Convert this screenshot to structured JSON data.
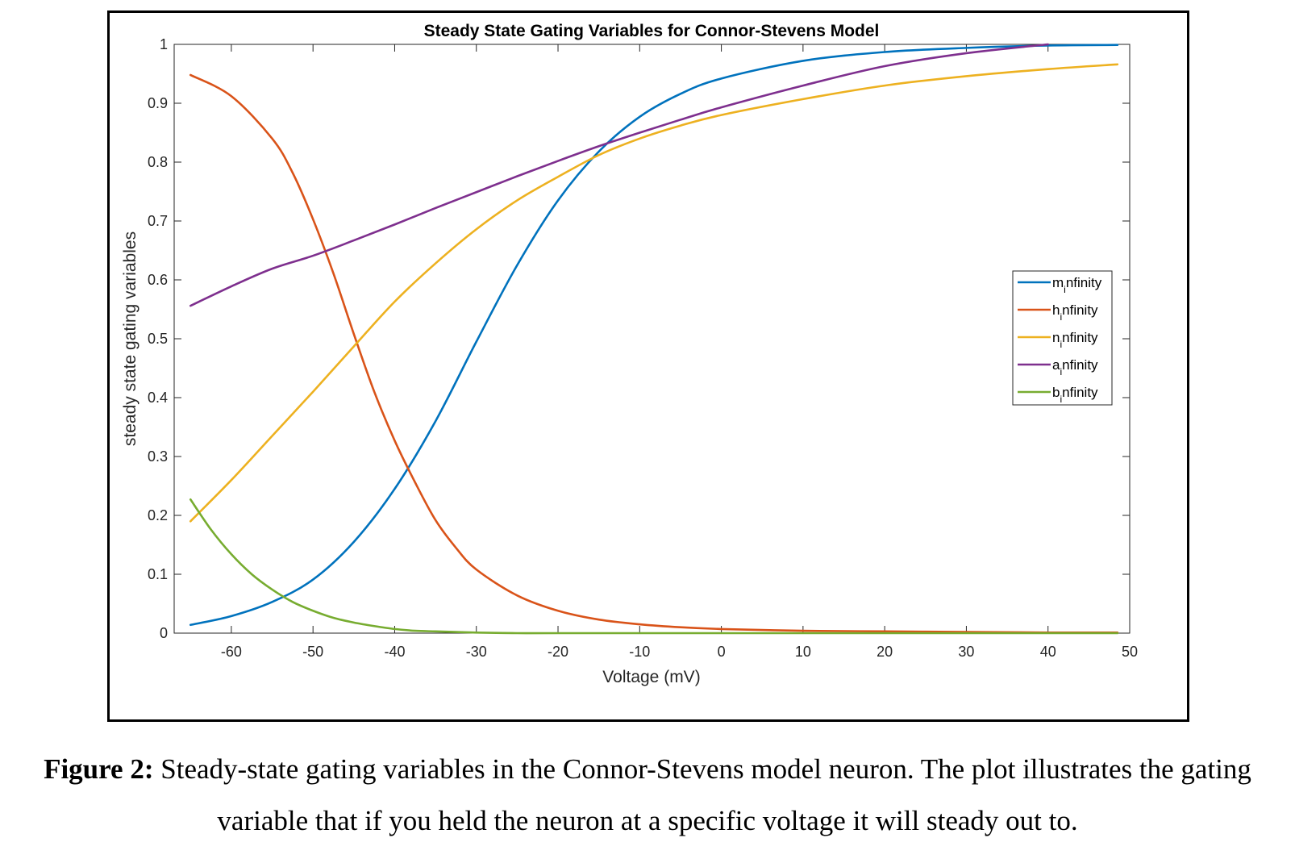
{
  "chart_data": {
    "type": "line",
    "title": "Steady State Gating Variables for Connor-Stevens Model",
    "xlabel": "Voltage (mV)",
    "ylabel": "steady state gating variables",
    "xlim": [
      -67,
      50
    ],
    "ylim": [
      0,
      1
    ],
    "xticks": [
      -60,
      -50,
      -40,
      -30,
      -20,
      -10,
      0,
      10,
      20,
      30,
      40,
      50
    ],
    "yticks": [
      0,
      0.1,
      0.2,
      0.3,
      0.4,
      0.5,
      0.6,
      0.7,
      0.8,
      0.9,
      1
    ],
    "grid": false,
    "legend_position": "right",
    "series": [
      {
        "name": "m_infinity",
        "label_base": "m",
        "label_sub": "i",
        "label_rest": "nfinity",
        "color": "#0072BD",
        "x": [
          -65,
          -60,
          -55,
          -50,
          -45,
          -40,
          -35,
          -30,
          -25,
          -20,
          -15,
          -10,
          -5,
          0,
          10,
          20,
          30,
          40,
          48.5
        ],
        "y": [
          0.014,
          0.029,
          0.053,
          0.091,
          0.155,
          0.245,
          0.36,
          0.495,
          0.625,
          0.735,
          0.818,
          0.877,
          0.916,
          0.942,
          0.972,
          0.987,
          0.994,
          0.998,
          0.999
        ]
      },
      {
        "name": "h_infinity",
        "label_base": "h",
        "label_sub": "i",
        "label_rest": "nfinity",
        "color": "#D95319",
        "x": [
          -65,
          -60,
          -55,
          -52.5,
          -50,
          -47.5,
          -45,
          -42.5,
          -40,
          -37.5,
          -35,
          -32.5,
          -30,
          -25,
          -20,
          -15,
          -10,
          -5,
          0,
          10,
          20,
          30,
          40,
          48.5
        ],
        "y": [
          0.948,
          0.912,
          0.84,
          0.782,
          0.703,
          0.611,
          0.508,
          0.41,
          0.327,
          0.256,
          0.192,
          0.145,
          0.108,
          0.064,
          0.038,
          0.023,
          0.015,
          0.01,
          0.007,
          0.004,
          0.003,
          0.002,
          0.001,
          0.001
        ]
      },
      {
        "name": "n_infinity",
        "label_base": "n",
        "label_sub": "i",
        "label_rest": "nfinity",
        "color": "#EDB120",
        "x": [
          -65,
          -60,
          -55,
          -50,
          -45,
          -40,
          -35,
          -30,
          -25,
          -20,
          -15,
          -10,
          -5,
          0,
          10,
          20,
          30,
          40,
          48.5
        ],
        "y": [
          0.19,
          0.26,
          0.335,
          0.41,
          0.487,
          0.563,
          0.628,
          0.686,
          0.735,
          0.775,
          0.812,
          0.84,
          0.862,
          0.88,
          0.907,
          0.93,
          0.946,
          0.958,
          0.966
        ]
      },
      {
        "name": "a_infinity",
        "label_base": "a",
        "label_sub": "i",
        "label_rest": "nfinity",
        "color": "#7E2F8E",
        "x": [
          -65,
          -60,
          -55,
          -50,
          -45,
          -40,
          -35,
          -30,
          -25,
          -20,
          -15,
          -10,
          -5,
          0,
          10,
          20,
          30,
          40
        ],
        "y": [
          0.556,
          0.589,
          0.619,
          0.641,
          0.667,
          0.694,
          0.722,
          0.749,
          0.776,
          0.802,
          0.827,
          0.85,
          0.872,
          0.893,
          0.93,
          0.963,
          0.985,
          1.0
        ]
      },
      {
        "name": "b_infinity",
        "label_base": "b",
        "label_sub": "i",
        "label_rest": "nfinity",
        "color": "#77AC30",
        "x": [
          -65,
          -62.5,
          -60,
          -57.5,
          -55,
          -52.5,
          -50,
          -47.5,
          -45,
          -42.5,
          -40,
          -37.5,
          -35,
          -32.5,
          -30,
          -25,
          -20,
          0,
          20,
          48.5
        ],
        "y": [
          0.227,
          0.176,
          0.134,
          0.1,
          0.074,
          0.053,
          0.038,
          0.026,
          0.018,
          0.012,
          0.007,
          0.004,
          0.003,
          0.002,
          0.001,
          0.0,
          0.0,
          0.0,
          0.0,
          0.0
        ]
      }
    ]
  },
  "caption": {
    "label": "Figure 2:",
    "text": " Steady-state gating variables in the Connor-Stevens model neuron. The plot illustrates the gating variable that if you held the neuron at a specific voltage it will steady out to."
  }
}
